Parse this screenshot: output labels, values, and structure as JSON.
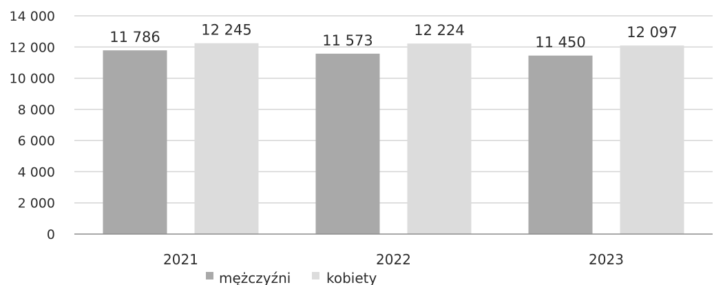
{
  "chart_data": {
    "type": "bar",
    "categories": [
      "2021",
      "2022",
      "2023"
    ],
    "series": [
      {
        "name": "mężczyźni",
        "values": [
          11786,
          11573,
          11450
        ],
        "labels": [
          "11 786",
          "11 573",
          "11 450"
        ],
        "color": "#a9a9a9"
      },
      {
        "name": "kobiety",
        "values": [
          12245,
          12224,
          12097
        ],
        "labels": [
          "12 245",
          "12 224",
          "12 097"
        ],
        "color": "#dcdcdc"
      }
    ],
    "y_ticks": [
      0,
      2000,
      4000,
      6000,
      8000,
      10000,
      12000,
      14000
    ],
    "y_tick_labels": [
      "0",
      "2 000",
      "4 000",
      "6 000",
      "8 000",
      "10 000",
      "12 000",
      "14 000"
    ],
    "ylim": [
      0,
      14000
    ],
    "grid": true,
    "legend": "bottom",
    "title": "",
    "xlabel": "",
    "ylabel": ""
  }
}
